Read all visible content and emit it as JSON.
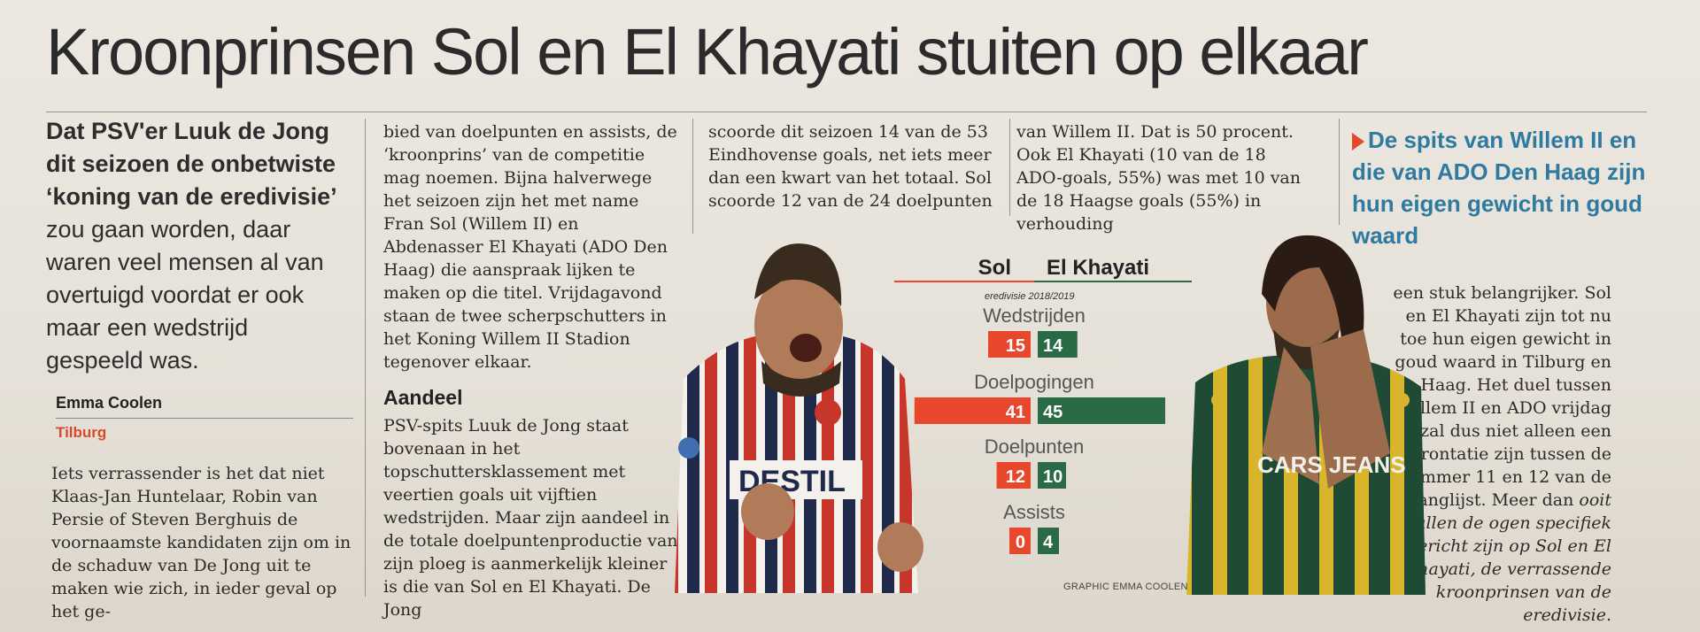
{
  "headline": "Kroonprinsen Sol en El Khayati stuiten op elkaar",
  "lead": {
    "bold": "Dat PSV'er Luuk de Jong dit seizoen de onbetwiste ‘koning van de eredivisie’",
    "rest": " zou gaan worden, daar waren veel mensen al van overtuigd voordat er ook maar een wedstrijd gespeeld was."
  },
  "byline": {
    "author": "Emma Coolen",
    "place": "Tilburg"
  },
  "columns": {
    "c1": "Iets verrassender is het dat niet Klaas-Jan Huntelaar, Robin van Persie of Steven Berghuis de voornaamste kandidaten zijn om in de schaduw van De Jong uit te maken wie zich, in ieder geval op het ge-",
    "c2": "bied van doelpunten en assists, de ‘kroonprins’ van de competitie mag noemen. Bijna halverwege het seizoen zijn het met name Fran Sol (Willem II) en Abdenasser El Khayati (ADO Den Haag) die aanspraak lijken te maken op die titel. Vrijdagavond staan de twee scherpschutters in het Koning Willem II Stadion tegenover elkaar.",
    "subhead": "Aandeel",
    "c2b": "PSV-spits Luuk de Jong staat bovenaan in het topschuttersklassement met veertien goals uit vijftien wedstrijden. Maar zijn aandeel in de totale doelpuntenproductie van zijn ploeg is aanmerkelijk kleiner is die van Sol en El Khayati. De Jong",
    "c3": "scoorde dit seizoen 14 van de 53 Eindhovense goals, net iets meer dan een kwart van het totaal. Sol scoorde 12 van de 24 doelpunten",
    "c4": "van Willem II. Dat is 50 procent. Ook El Khayati (10 van de 18 ADO-goals, 55%) was met 10 van de 18 Haagse goals (55%) in verhouding",
    "c5a": "een stuk belangrijker. Sol en El Khayati zijn tot nu toe hun eigen gewicht in goud waard in Tilburg en Den Haag. Het duel tussen Willem II en ADO vrijdag zal dus niet alleen een confrontatie zijn tussen de nummer 11 en 12 van de ranglijst. Meer dan ",
    "c5b": "ooit zullen de ogen specifiek gericht zijn op Sol en El Khayati, de verrassende kroonprinsen van de eredivisie."
  },
  "pull_quote": "De spits van Willem II en die van ADO Den Haag zijn hun eigen gewicht in goud waard",
  "graphic": {
    "name_left": "Sol",
    "name_right": "El Khayati",
    "season": "eredivisie 2018/2019",
    "credit": "GRAPHIC EMMA COOLEN",
    "jersey_left": "DESTIL",
    "jersey_right": "CARS JEANS",
    "color_left": "#e8472b",
    "color_right": "#2a6a45"
  },
  "chart_data": {
    "type": "bar",
    "categories": [
      "Wedstrijden",
      "Doelpogingen",
      "Doelpunten",
      "Assists"
    ],
    "series": [
      {
        "name": "Sol",
        "values": [
          15,
          41,
          12,
          0
        ]
      },
      {
        "name": "El Khayati",
        "values": [
          14,
          45,
          10,
          4
        ]
      }
    ],
    "title": "Sol El Khayati",
    "subtitle": "eredivisie 2018/2019"
  }
}
